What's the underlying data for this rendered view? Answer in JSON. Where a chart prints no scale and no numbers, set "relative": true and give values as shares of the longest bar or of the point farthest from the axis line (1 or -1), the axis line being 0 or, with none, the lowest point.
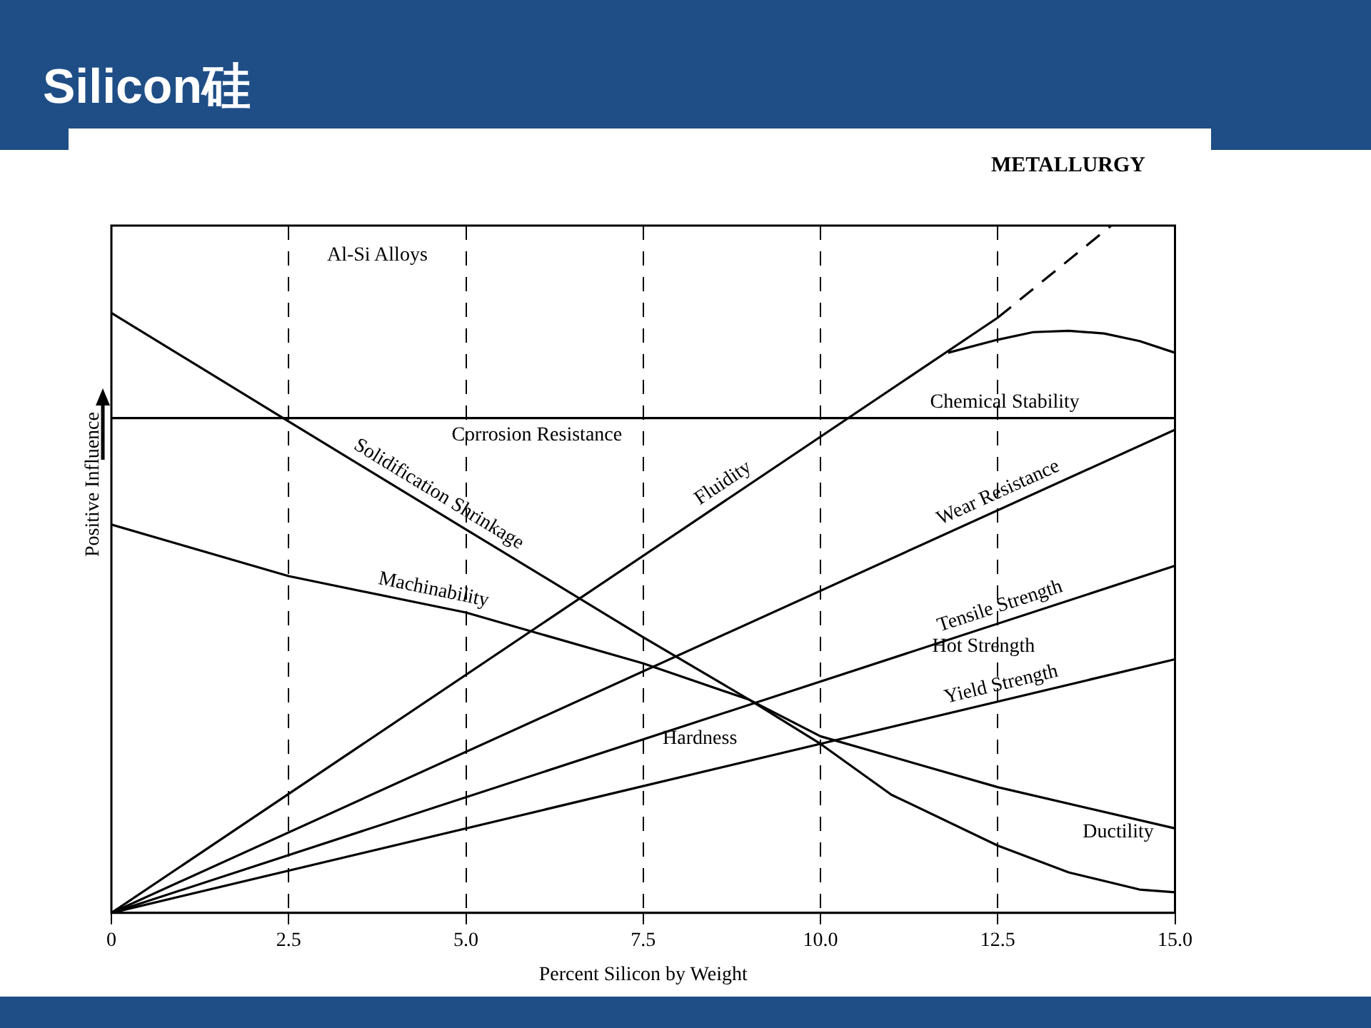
{
  "chart_data": {
    "type": "line",
    "title": "Silicon硅",
    "xlabel": "Percent Silicon by Weight",
    "ylabel": "Positive Influence",
    "relative": true,
    "grid": "x",
    "legend": false,
    "marker": "none",
    "xlim": [
      0,
      15
    ],
    "xticks": [
      {
        "value": 0,
        "label": "0"
      },
      {
        "value": 2.5,
        "label": "2.5"
      },
      {
        "value": 5,
        "label": "5.0"
      },
      {
        "value": 7.5,
        "label": "7.5"
      },
      {
        "value": 10,
        "label": "10.0"
      },
      {
        "value": 12.5,
        "label": "12.5"
      },
      {
        "value": 15,
        "label": "15.0"
      }
    ],
    "series": [
      {
        "name": "Chemical Stability",
        "color": "#000000",
        "x": [
          0,
          15
        ],
        "values": [
          0.72,
          0.72
        ]
      },
      {
        "name": "Fluidity",
        "color": "#000000",
        "x": [
          0,
          12.5
        ],
        "values": [
          0,
          0.866
        ]
      },
      {
        "color": "#000000",
        "x": [
          11.8,
          12.5,
          13,
          13.5,
          14,
          14.5,
          15
        ],
        "values": [
          0.815,
          0.834,
          0.845,
          0.847,
          0.843,
          0.832,
          0.815
        ]
      },
      {
        "color": "#000000",
        "line_style": "dashed",
        "x": [
          12.5,
          14.1
        ],
        "values": [
          0.866,
          1
        ]
      },
      {
        "name": "Wear Resistance",
        "color": "#000000",
        "x": [
          0,
          15
        ],
        "values": [
          0,
          0.703
        ]
      },
      {
        "name": "Tensile Strength",
        "color": "#000000",
        "x": [
          0,
          15
        ],
        "values": [
          0,
          0.505
        ]
      },
      {
        "name": "Yield Strength",
        "color": "#000000",
        "x": [
          0,
          15
        ],
        "values": [
          0,
          0.369
        ]
      },
      {
        "name": "Machinability",
        "color": "#000000",
        "x": [
          0,
          2.5,
          5,
          7.5,
          9,
          10,
          12.5,
          15
        ],
        "values": [
          0.565,
          0.49,
          0.437,
          0.363,
          0.31,
          0.257,
          0.183,
          0.123
        ]
      },
      {
        "name": "Solidification Shrinkage",
        "color": "#000000",
        "x": [
          0,
          2.5,
          5,
          7.5,
          9,
          10,
          11,
          12.5,
          13.5,
          14.5,
          15
        ],
        "values": [
          0.873,
          0.715,
          0.558,
          0.401,
          0.31,
          0.246,
          0.172,
          0.098,
          0.059,
          0.034,
          0.03
        ]
      }
    ],
    "annotations": [
      "METALLURGY",
      "Al-Si Alloys",
      {
        "text": "Corrosion Resistance",
        "x": 6,
        "y": 0.72
      },
      {
        "text": "Hot Strength",
        "x": 12.3,
        "y": 0.413
      },
      {
        "text": "Hardness",
        "x": 8.3,
        "y": 0.279
      },
      {
        "text": "Ductility",
        "x": 14.2,
        "y": 0.142
      }
    ]
  }
}
